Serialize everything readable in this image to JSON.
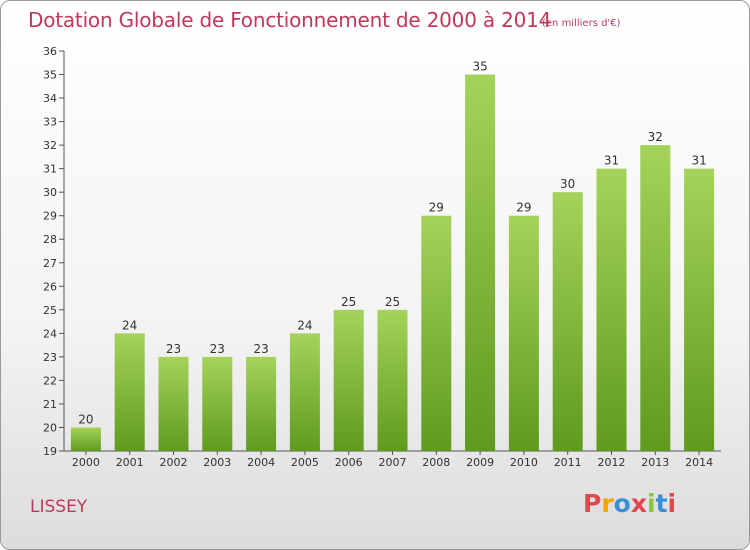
{
  "header": {
    "title": "Dotation Globale de Fonctionnement de 2000 à 2014",
    "unit": "(en milliers d'€)"
  },
  "commune": "LISSEY",
  "logo": {
    "text": "Proxiti",
    "colors": [
      "#e0484d",
      "#f0a500",
      "#3a8fd8",
      "#e0484d",
      "#8cc63f",
      "#3a8fd8",
      "#e0484d"
    ]
  },
  "colors": {
    "bar_top": "#a5d35a",
    "bar_bottom": "#5f9a1e",
    "title": "#c0395a"
  },
  "chart_data": {
    "type": "bar",
    "title": "Dotation Globale de Fonctionnement de 2000 à 2014",
    "subtitle": "(en milliers d'€)",
    "categories": [
      "2000",
      "2001",
      "2002",
      "2003",
      "2004",
      "2005",
      "2006",
      "2007",
      "2008",
      "2009",
      "2010",
      "2011",
      "2012",
      "2013",
      "2014"
    ],
    "values": [
      20,
      24,
      23,
      23,
      23,
      24,
      25,
      25,
      29,
      35,
      29,
      30,
      31,
      32,
      31
    ],
    "ylim": [
      19,
      36
    ],
    "yticks": [
      19,
      20,
      21,
      22,
      23,
      24,
      25,
      26,
      27,
      28,
      29,
      30,
      31,
      32,
      33,
      34,
      35,
      36
    ],
    "grid": false,
    "legend": "none"
  }
}
